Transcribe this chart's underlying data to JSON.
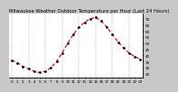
{
  "title": "Milwaukee Weather Outdoor Temperature per Hour (Last 24 Hours)",
  "hours": [
    0,
    1,
    2,
    3,
    4,
    5,
    6,
    7,
    8,
    9,
    10,
    11,
    12,
    13,
    14,
    15,
    16,
    17,
    18,
    19,
    20,
    21,
    22,
    23
  ],
  "temps": [
    36,
    34,
    31,
    29,
    27,
    26,
    27,
    30,
    35,
    42,
    50,
    57,
    63,
    67,
    70,
    71,
    68,
    63,
    57,
    51,
    46,
    42,
    39,
    37
  ],
  "line_color": "#ff0000",
  "marker_color": "#111111",
  "bg_color": "#c8c8c8",
  "plot_bg": "#ffffff",
  "grid_color": "#888888",
  "title_color": "#000000",
  "tick_color": "#000000",
  "border_color": "#000000",
  "ylim": [
    22,
    74
  ],
  "ytick_values": [
    25,
    30,
    35,
    40,
    45,
    50,
    55,
    60,
    65,
    70
  ],
  "title_fontsize": 3.8,
  "tick_fontsize": 3.0,
  "line_width": 0.9,
  "marker_size": 2.0
}
